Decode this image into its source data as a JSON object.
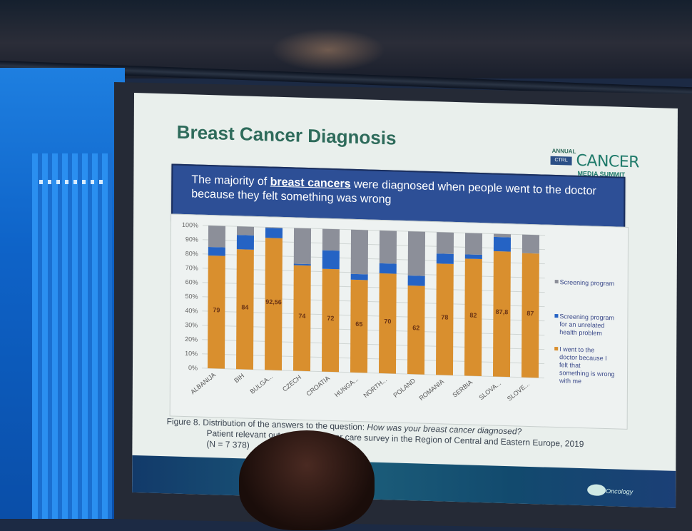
{
  "slide": {
    "title": "Breast Cancer Diagnosis",
    "logo": {
      "annual": "ANNUAL",
      "ctrl": "CTRL",
      "cancer": "CANCER",
      "media_summit": "MEDIA SUMMIT"
    },
    "banner": {
      "before": "The majority of ",
      "emphasis": "breast cancers",
      "after": " were diagnosed when people went to the doctor because they felt something was wrong"
    },
    "caption": {
      "label": "Figure 8.",
      "line1_plain": " Distribution of the answers to the question: ",
      "line1_italic": "How was your breast cancer diagnosed?",
      "line2": "Patient relevant outcomes in cancer care survey in the Region of Central and Eastern Europe, 2019",
      "line3": "(N = 7 378)"
    },
    "footer_brand": "Oncology",
    "colors": {
      "orange": "#d98f2e",
      "blue": "#2563c4",
      "gray": "#8c8f99",
      "title_green": "#2e6b5b",
      "banner_blue": "#2d4f96"
    }
  },
  "chart_data": {
    "type": "bar",
    "stacked": true,
    "percent": true,
    "categories": [
      "ALBANIJA",
      "BIH",
      "BULGA...",
      "CZECH",
      "CROATIA",
      "HUNGA...",
      "NORTH...",
      "POLAND",
      "ROMANIA",
      "SERBIA",
      "SLOVA...",
      "SLOVE..."
    ],
    "series": [
      {
        "name": "I went to the doctor because I felt that something is wrong with me",
        "color": "#d98f2e",
        "values": [
          79,
          84,
          92.56,
          74,
          72,
          65,
          70,
          62,
          78,
          82,
          87.8,
          87
        ]
      },
      {
        "name": "Screening program for an unrelated health problem",
        "color": "#2563c4",
        "values": [
          6,
          10,
          7,
          1,
          13,
          4,
          7,
          7,
          7,
          3,
          10,
          0
        ]
      },
      {
        "name": "Screening program",
        "color": "#8c8f99",
        "values": [
          15,
          6,
          0.44,
          25,
          15,
          31,
          23,
          31,
          15,
          15,
          2.2,
          13
        ]
      }
    ],
    "data_labels": [
      "79",
      "84",
      "92,56",
      "74",
      "72",
      "65",
      "70",
      "62",
      "78",
      "82",
      "87,8",
      "87"
    ],
    "y_ticks": [
      "0%",
      "10%",
      "20%",
      "30%",
      "40%",
      "50%",
      "60%",
      "70%",
      "80%",
      "90%",
      "100%"
    ],
    "ylim": [
      0,
      100
    ],
    "legend_position": "right",
    "grid": true,
    "title": "",
    "xlabel": "",
    "ylabel": ""
  }
}
